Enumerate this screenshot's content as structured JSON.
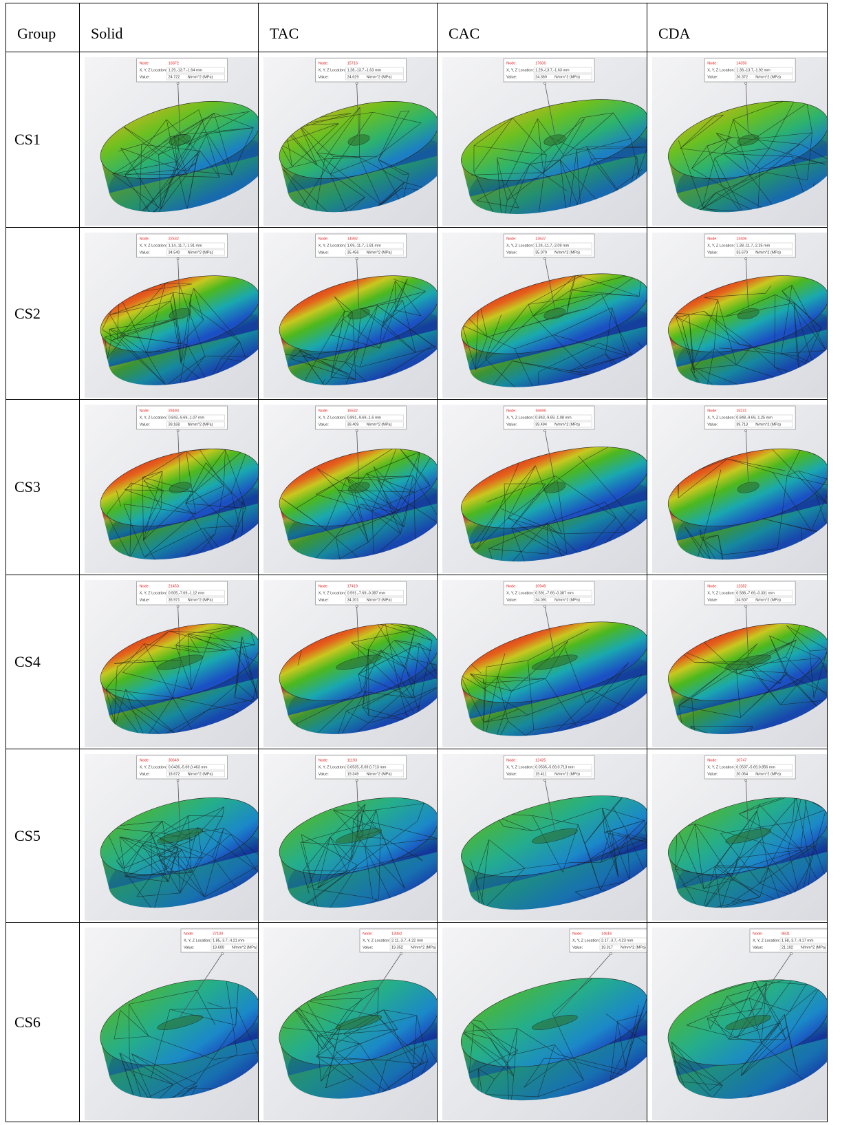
{
  "table": {
    "header": [
      "Group",
      "Solid",
      "TAC",
      "CAC",
      "CDA"
    ],
    "tooltip_labels": {
      "node": "Node:",
      "location": "X, Y, Z Location:",
      "value": "Value:",
      "unit": "N/mm^2 (MPa)"
    },
    "rows": [
      {
        "group": "CS1",
        "cells": [
          {
            "node": "16872",
            "location": "1.29,-13.7,-1.64 mm",
            "value": "24.722"
          },
          {
            "node": "15716",
            "location": "1.28,-13.7,-1.63 mm",
            "value": "24.629"
          },
          {
            "node": "17606",
            "location": "1.28,-13.7,-1.63 mm",
            "value": "24.369"
          },
          {
            "node": "14356",
            "location": "1.38,-13.7,-1.92 mm",
            "value": "26.372"
          }
        ]
      },
      {
        "group": "CS2",
        "cells": [
          {
            "node": "22532",
            "location": "1.14,-11.7,-1.91 mm",
            "value": "34.540"
          },
          {
            "node": "14992",
            "location": "1.09,-11.7,-1.81 mm",
            "value": "35.456"
          },
          {
            "node": "13637",
            "location": "1.24,-11.7,-2.09 mm",
            "value": "35.079"
          },
          {
            "node": "13406",
            "location": "1.38,-11.7,-2.25 mm",
            "value": "33.670"
          }
        ]
      },
      {
        "group": "CS3",
        "cells": [
          {
            "node": "29493",
            "location": "0.843,-9.69,-1.07 mm",
            "value": "39.168"
          },
          {
            "node": "16532",
            "location": "0.891,-9.69,-1.6 mm",
            "value": "39.409"
          },
          {
            "node": "16699",
            "location": "0.843,-9.69,-1.08 mm",
            "value": "39.494"
          },
          {
            "node": "15231",
            "location": "0.848,-9.69,-1.25 mm",
            "value": "39.713"
          }
        ]
      },
      {
        "group": "CS4",
        "cells": [
          {
            "node": "21453",
            "location": "0.505,-7.69,-1.12 mm",
            "value": "35.971"
          },
          {
            "node": "17419",
            "location": "0.591,-7.69,-0.387 mm",
            "value": "34.201"
          },
          {
            "node": "10949",
            "location": "0.591,-7.69,-0.387 mm",
            "value": "34.091"
          },
          {
            "node": "12382",
            "location": "0.588,-7.69,-0.331 mm",
            "value": "34.507"
          }
        ]
      },
      {
        "group": "CS5",
        "cells": [
          {
            "node": "30649",
            "location": "0.0436,-5.69,0.463 mm",
            "value": "18.672"
          },
          {
            "node": "11193",
            "location": "0.0535,-5.69,0.713 mm",
            "value": "19.349"
          },
          {
            "node": "12425",
            "location": "0.0535,-5.69,0.713 mm",
            "value": "19.411"
          },
          {
            "node": "10747",
            "location": "0.0537,-5.69,0.856 mm",
            "value": "20.064"
          }
        ]
      },
      {
        "group": "CS6",
        "cells": [
          {
            "node": "27100",
            "location": "1.85,-3.7,-4.21 mm",
            "value": "19.609"
          },
          {
            "node": "13062",
            "location": "2.11,-3.7,-4.22 mm",
            "value": "19.352"
          },
          {
            "node": "14616",
            "location": "2.17,-3.7,-4.23 mm",
            "value": "19.317"
          },
          {
            "node": "8601",
            "location": "1.58,-3.7,-4.17 mm",
            "value": "21.102"
          }
        ]
      }
    ]
  }
}
